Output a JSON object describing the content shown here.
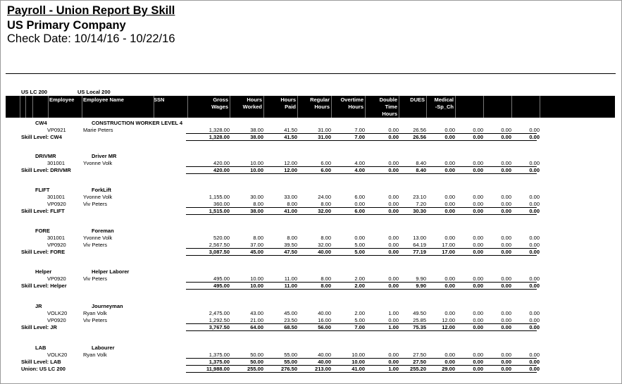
{
  "report": {
    "title": "Payroll - Union Report By Skill",
    "company": "US Primary Company",
    "check_date": "Check Date: 10/14/16 - 10/22/16"
  },
  "union": {
    "code": "US LC 200",
    "name": "US Local 200"
  },
  "columns": {
    "employee": "Employee",
    "employee_name": "Employee Name",
    "ssn": "SSN",
    "gross_wages": [
      "Gross",
      "Wages"
    ],
    "hours_worked": [
      "Hours",
      "Worked"
    ],
    "hours_paid": [
      "Hours",
      "Paid"
    ],
    "regular_hours": [
      "Regular",
      "Hours"
    ],
    "overtime_hours": [
      "Overtime",
      "Hours"
    ],
    "double_time_hours": [
      "Double",
      "Time",
      "Hours"
    ],
    "dues": [
      "DUES"
    ],
    "medical_sp_ch": [
      "Medical",
      "-Sp_Ch"
    ]
  },
  "skills": [
    {
      "code": "CW4",
      "name": "CONSTRUCTION WORKER LEVEL 4",
      "employees": [
        {
          "id": "VP0921",
          "name": "Marie Peters",
          "values": [
            "1,328.00",
            "38.00",
            "41.50",
            "31.00",
            "7.00",
            "0.00",
            "26.56",
            "0.00",
            "0.00",
            "0.00",
            "0.00"
          ]
        }
      ],
      "subtotal_label": "Skill Level: CW4",
      "subtotal": [
        "1,328.00",
        "38.00",
        "41.50",
        "31.00",
        "7.00",
        "0.00",
        "26.56",
        "0.00",
        "0.00",
        "0.00",
        "0.00"
      ]
    },
    {
      "code": "DRIVMR",
      "name": "Driver MR",
      "employees": [
        {
          "id": "301001",
          "name": "Yvonne Volk",
          "values": [
            "420.00",
            "10.00",
            "12.00",
            "6.00",
            "4.00",
            "0.00",
            "8.40",
            "0.00",
            "0.00",
            "0.00",
            "0.00"
          ]
        }
      ],
      "subtotal_label": "Skill Level: DRIVMR",
      "subtotal": [
        "420.00",
        "10.00",
        "12.00",
        "6.00",
        "4.00",
        "0.00",
        "8.40",
        "0.00",
        "0.00",
        "0.00",
        "0.00"
      ]
    },
    {
      "code": "FLIFT",
      "name": "ForkLift",
      "employees": [
        {
          "id": "301001",
          "name": "Yvonne Volk",
          "values": [
            "1,155.00",
            "30.00",
            "33.00",
            "24.00",
            "6.00",
            "0.00",
            "23.10",
            "0.00",
            "0.00",
            "0.00",
            "0.00"
          ]
        },
        {
          "id": "VP0920",
          "name": "Viv Peters",
          "values": [
            "360.00",
            "8.00",
            "8.00",
            "8.00",
            "0.00",
            "0.00",
            "7.20",
            "0.00",
            "0.00",
            "0.00",
            "0.00"
          ]
        }
      ],
      "subtotal_label": "Skill Level: FLIFT",
      "subtotal": [
        "1,515.00",
        "38.00",
        "41.00",
        "32.00",
        "6.00",
        "0.00",
        "30.30",
        "0.00",
        "0.00",
        "0.00",
        "0.00"
      ]
    },
    {
      "code": "FORE",
      "name": "Foreman",
      "employees": [
        {
          "id": "301001",
          "name": "Yvonne Volk",
          "values": [
            "520.00",
            "8.00",
            "8.00",
            "8.00",
            "0.00",
            "0.00",
            "13.00",
            "0.00",
            "0.00",
            "0.00",
            "0.00"
          ]
        },
        {
          "id": "VP0920",
          "name": "Viv Peters",
          "values": [
            "2,567.50",
            "37.00",
            "39.50",
            "32.00",
            "5.00",
            "0.00",
            "64.19",
            "17.00",
            "0.00",
            "0.00",
            "0.00"
          ]
        }
      ],
      "subtotal_label": "Skill Level: FORE",
      "subtotal": [
        "3,087.50",
        "45.00",
        "47.50",
        "40.00",
        "5.00",
        "0.00",
        "77.19",
        "17.00",
        "0.00",
        "0.00",
        "0.00"
      ]
    },
    {
      "code": "Helper",
      "name": "Helper Laborer",
      "employees": [
        {
          "id": "VP0920",
          "name": "Viv Peters",
          "values": [
            "495.00",
            "10.00",
            "11.00",
            "8.00",
            "2.00",
            "0.00",
            "9.90",
            "0.00",
            "0.00",
            "0.00",
            "0.00"
          ]
        }
      ],
      "subtotal_label": "Skill Level: Helper",
      "subtotal": [
        "495.00",
        "10.00",
        "11.00",
        "8.00",
        "2.00",
        "0.00",
        "9.90",
        "0.00",
        "0.00",
        "0.00",
        "0.00"
      ]
    },
    {
      "code": "JR",
      "name": "Journeyman",
      "employees": [
        {
          "id": "VOLK20",
          "name": "Ryan Volk",
          "values": [
            "2,475.00",
            "43.00",
            "45.00",
            "40.00",
            "2.00",
            "1.00",
            "49.50",
            "0.00",
            "0.00",
            "0.00",
            "0.00"
          ]
        },
        {
          "id": "VP0920",
          "name": "Viv Peters",
          "values": [
            "1,292.50",
            "21.00",
            "23.50",
            "16.00",
            "5.00",
            "0.00",
            "25.85",
            "12.00",
            "0.00",
            "0.00",
            "0.00"
          ]
        }
      ],
      "subtotal_label": "Skill Level: JR",
      "subtotal": [
        "3,767.50",
        "64.00",
        "68.50",
        "56.00",
        "7.00",
        "1.00",
        "75.35",
        "12.00",
        "0.00",
        "0.00",
        "0.00"
      ]
    },
    {
      "code": "LAB",
      "name": "Labourer",
      "employees": [
        {
          "id": "VOLK20",
          "name": "Ryan Volk",
          "values": [
            "1,375.00",
            "50.00",
            "55.00",
            "40.00",
            "10.00",
            "0.00",
            "27.50",
            "0.00",
            "0.00",
            "0.00",
            "0.00"
          ]
        }
      ],
      "subtotal_label": "Skill Level: LAB",
      "subtotal": [
        "1,375.00",
        "50.00",
        "55.00",
        "40.00",
        "10.00",
        "0.00",
        "27.50",
        "0.00",
        "0.00",
        "0.00",
        "0.00"
      ]
    }
  ],
  "union_total_label": "Union: US LC 200",
  "union_total": [
    "11,988.00",
    "255.00",
    "276.50",
    "213.00",
    "41.00",
    "1.00",
    "255.20",
    "29.00",
    "0.00",
    "0.00",
    "0.00"
  ]
}
